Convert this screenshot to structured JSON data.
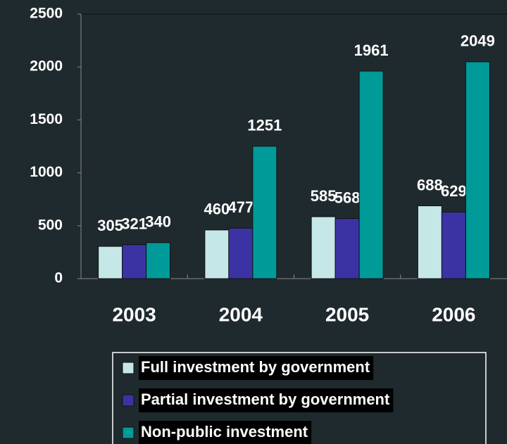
{
  "chart_data": {
    "type": "bar",
    "categories": [
      "2003",
      "2004",
      "2005",
      "2006"
    ],
    "series": [
      {
        "name": "Full investment by government",
        "color": "#c6e7e7",
        "values": [
          305,
          460,
          585,
          688
        ]
      },
      {
        "name": "Partial investment by government",
        "color": "#3b33a3",
        "values": [
          321,
          477,
          568,
          629
        ]
      },
      {
        "name": "Non-public investment",
        "color": "#009a99",
        "values": [
          340,
          1251,
          1961,
          2049
        ]
      }
    ],
    "ylim": [
      0,
      2500
    ],
    "yticks": [
      0,
      500,
      1000,
      1500,
      2000,
      2500
    ],
    "legend": "bottom"
  }
}
